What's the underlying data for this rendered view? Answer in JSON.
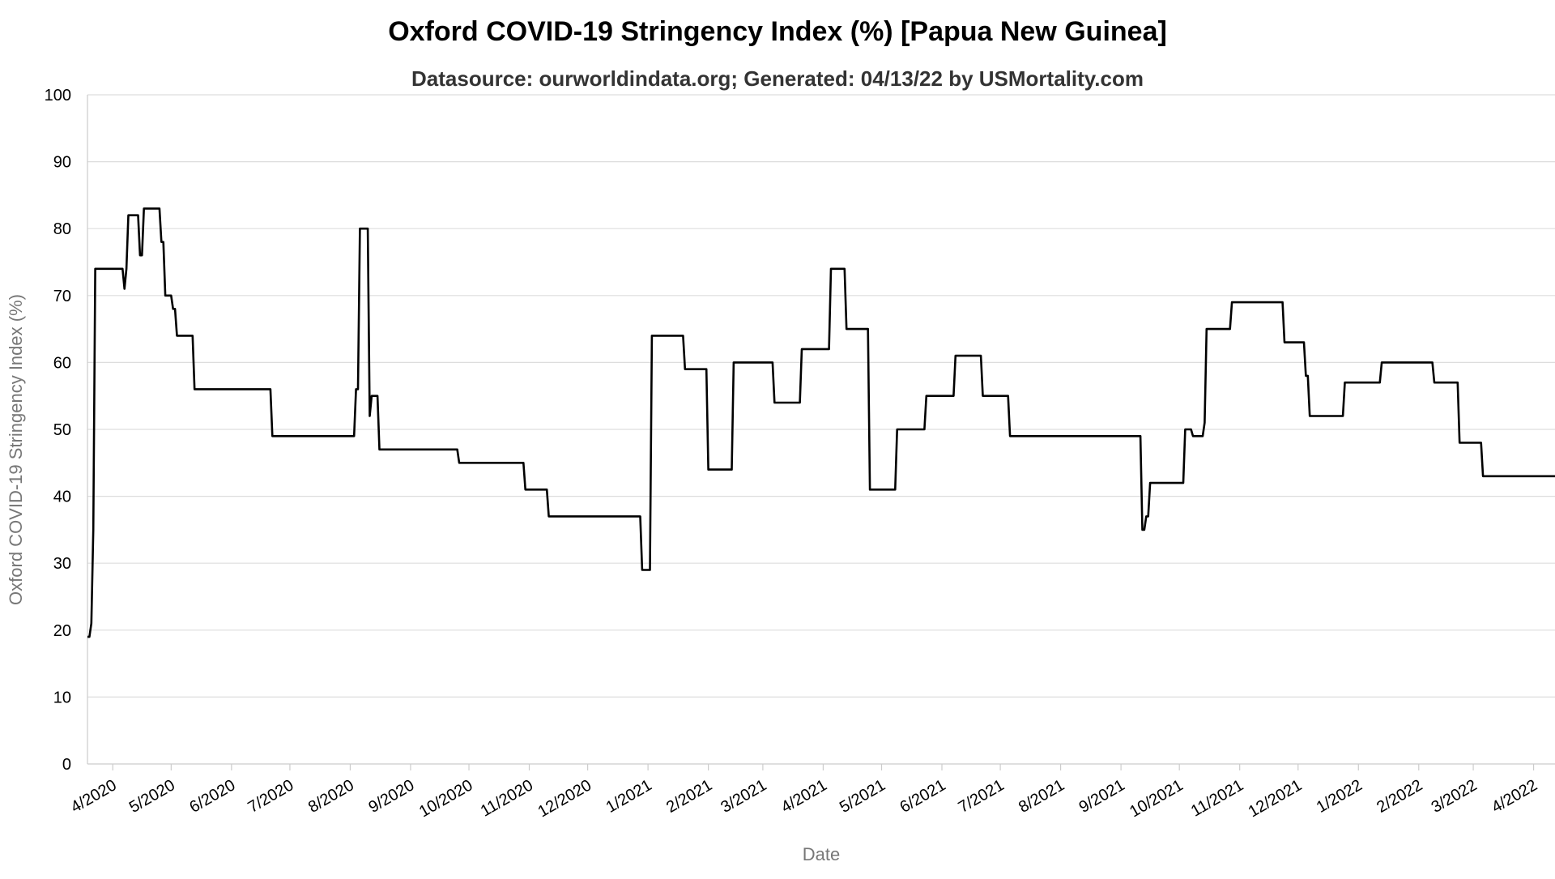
{
  "chart_data": {
    "type": "line",
    "title": "Oxford COVID-19 Stringency Index (%) [Papua New Guinea]",
    "subtitle": "Datasource: ourworldindata.org; Generated: 04/13/22 by USMortality.com",
    "xlabel": "Date",
    "ylabel": "Oxford COVID-19 Stringency Index (%)",
    "ylim": [
      0,
      100
    ],
    "yticks": [
      0,
      10,
      20,
      30,
      40,
      50,
      60,
      70,
      80,
      90,
      100
    ],
    "xlim": [
      "2020-03-19",
      "2022-04-12"
    ],
    "xticks": [
      {
        "date": "2020-04-01",
        "label": "4/2020"
      },
      {
        "date": "2020-05-01",
        "label": "5/2020"
      },
      {
        "date": "2020-06-01",
        "label": "6/2020"
      },
      {
        "date": "2020-07-01",
        "label": "7/2020"
      },
      {
        "date": "2020-08-01",
        "label": "8/2020"
      },
      {
        "date": "2020-09-01",
        "label": "9/2020"
      },
      {
        "date": "2020-10-01",
        "label": "10/2020"
      },
      {
        "date": "2020-11-01",
        "label": "11/2020"
      },
      {
        "date": "2020-12-01",
        "label": "12/2020"
      },
      {
        "date": "2021-01-01",
        "label": "1/2021"
      },
      {
        "date": "2021-02-01",
        "label": "2/2021"
      },
      {
        "date": "2021-03-01",
        "label": "3/2021"
      },
      {
        "date": "2021-04-01",
        "label": "4/2021"
      },
      {
        "date": "2021-05-01",
        "label": "5/2021"
      },
      {
        "date": "2021-06-01",
        "label": "6/2021"
      },
      {
        "date": "2021-07-01",
        "label": "7/2021"
      },
      {
        "date": "2021-08-01",
        "label": "8/2021"
      },
      {
        "date": "2021-09-01",
        "label": "9/2021"
      },
      {
        "date": "2021-10-01",
        "label": "10/2021"
      },
      {
        "date": "2021-11-01",
        "label": "11/2021"
      },
      {
        "date": "2021-12-01",
        "label": "12/2021"
      },
      {
        "date": "2022-01-01",
        "label": "1/2022"
      },
      {
        "date": "2022-02-01",
        "label": "2/2022"
      },
      {
        "date": "2022-03-01",
        "label": "3/2022"
      },
      {
        "date": "2022-04-01",
        "label": "4/2022"
      }
    ],
    "grid": true,
    "series": [
      {
        "color": "#000000",
        "points": [
          [
            "2020-03-19",
            19
          ],
          [
            "2020-03-20",
            19
          ],
          [
            "2020-03-21",
            21
          ],
          [
            "2020-03-22",
            35
          ],
          [
            "2020-03-23",
            74
          ],
          [
            "2020-04-06",
            74
          ],
          [
            "2020-04-07",
            71
          ],
          [
            "2020-04-08",
            74
          ],
          [
            "2020-04-09",
            82
          ],
          [
            "2020-04-14",
            82
          ],
          [
            "2020-04-15",
            76
          ],
          [
            "2020-04-16",
            76
          ],
          [
            "2020-04-17",
            83
          ],
          [
            "2020-04-25",
            83
          ],
          [
            "2020-04-26",
            78
          ],
          [
            "2020-04-27",
            78
          ],
          [
            "2020-04-28",
            70
          ],
          [
            "2020-05-01",
            70
          ],
          [
            "2020-05-02",
            68
          ],
          [
            "2020-05-03",
            68
          ],
          [
            "2020-05-04",
            64
          ],
          [
            "2020-05-12",
            64
          ],
          [
            "2020-05-13",
            56
          ],
          [
            "2020-06-21",
            56
          ],
          [
            "2020-06-22",
            49
          ],
          [
            "2020-08-03",
            49
          ],
          [
            "2020-08-04",
            56
          ],
          [
            "2020-08-05",
            56
          ],
          [
            "2020-08-06",
            80
          ],
          [
            "2020-08-10",
            80
          ],
          [
            "2020-08-11",
            52
          ],
          [
            "2020-08-12",
            55
          ],
          [
            "2020-08-15",
            55
          ],
          [
            "2020-08-16",
            47
          ],
          [
            "2020-09-25",
            47
          ],
          [
            "2020-09-26",
            45
          ],
          [
            "2020-10-29",
            45
          ],
          [
            "2020-10-30",
            41
          ],
          [
            "2020-11-10",
            41
          ],
          [
            "2020-11-11",
            37
          ],
          [
            "2020-12-28",
            37
          ],
          [
            "2020-12-29",
            29
          ],
          [
            "2021-01-02",
            29
          ],
          [
            "2021-01-03",
            64
          ],
          [
            "2021-01-19",
            64
          ],
          [
            "2021-01-20",
            59
          ],
          [
            "2021-01-31",
            59
          ],
          [
            "2021-02-01",
            44
          ],
          [
            "2021-02-13",
            44
          ],
          [
            "2021-02-14",
            60
          ],
          [
            "2021-03-06",
            60
          ],
          [
            "2021-03-07",
            54
          ],
          [
            "2021-03-20",
            54
          ],
          [
            "2021-03-21",
            62
          ],
          [
            "2021-04-04",
            62
          ],
          [
            "2021-04-05",
            74
          ],
          [
            "2021-04-12",
            74
          ],
          [
            "2021-04-13",
            65
          ],
          [
            "2021-04-24",
            65
          ],
          [
            "2021-04-25",
            41
          ],
          [
            "2021-05-08",
            41
          ],
          [
            "2021-05-09",
            50
          ],
          [
            "2021-05-23",
            50
          ],
          [
            "2021-05-24",
            55
          ],
          [
            "2021-06-07",
            55
          ],
          [
            "2021-06-08",
            61
          ],
          [
            "2021-06-21",
            61
          ],
          [
            "2021-06-22",
            55
          ],
          [
            "2021-07-05",
            55
          ],
          [
            "2021-07-06",
            49
          ],
          [
            "2021-09-11",
            49
          ],
          [
            "2021-09-12",
            35
          ],
          [
            "2021-09-13",
            35
          ],
          [
            "2021-09-14",
            37
          ],
          [
            "2021-09-15",
            37
          ],
          [
            "2021-09-16",
            42
          ],
          [
            "2021-10-03",
            42
          ],
          [
            "2021-10-04",
            50
          ],
          [
            "2021-10-07",
            50
          ],
          [
            "2021-10-08",
            49
          ],
          [
            "2021-10-13",
            49
          ],
          [
            "2021-10-14",
            51
          ],
          [
            "2021-10-15",
            65
          ],
          [
            "2021-10-27",
            65
          ],
          [
            "2021-10-28",
            69
          ],
          [
            "2021-11-23",
            69
          ],
          [
            "2021-11-24",
            63
          ],
          [
            "2021-12-04",
            63
          ],
          [
            "2021-12-05",
            58
          ],
          [
            "2021-12-06",
            58
          ],
          [
            "2021-12-07",
            52
          ],
          [
            "2021-12-24",
            52
          ],
          [
            "2021-12-25",
            57
          ],
          [
            "2022-01-12",
            57
          ],
          [
            "2022-01-13",
            60
          ],
          [
            "2022-02-08",
            60
          ],
          [
            "2022-02-09",
            57
          ],
          [
            "2022-02-21",
            57
          ],
          [
            "2022-02-22",
            48
          ],
          [
            "2022-03-05",
            48
          ],
          [
            "2022-03-06",
            43
          ],
          [
            "2022-04-12",
            43
          ]
        ]
      }
    ]
  }
}
